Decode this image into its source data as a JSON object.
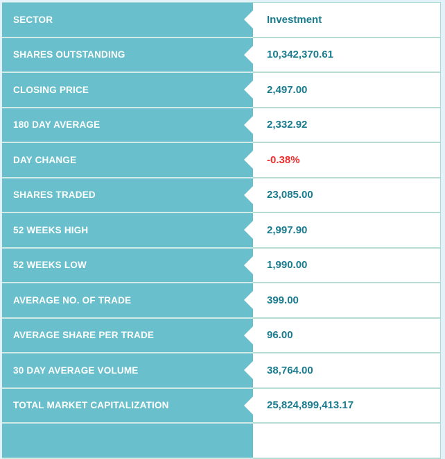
{
  "table": {
    "rows": [
      {
        "label": "SECTOR",
        "value": "Investment"
      },
      {
        "label": "SHARES OUTSTANDING",
        "value": "10,342,370.61"
      },
      {
        "label": "CLOSING PRICE",
        "value": "2,497.00"
      },
      {
        "label": "180 DAY AVERAGE",
        "value": "2,332.92"
      },
      {
        "label": "DAY CHANGE",
        "value": "-0.38%",
        "value_color": "#ee2e2e"
      },
      {
        "label": "SHARES TRADED",
        "value": "23,085.00"
      },
      {
        "label": "52 WEEKS HIGH",
        "value": "2,997.90"
      },
      {
        "label": "52 WEEKS LOW",
        "value": "1,990.00"
      },
      {
        "label": "AVERAGE NO. OF TRADE",
        "value": "399.00"
      },
      {
        "label": "AVERAGE SHARE PER TRADE",
        "value": "96.00"
      },
      {
        "label": "30 DAY AVERAGE VOLUME",
        "value": "38,764.00"
      },
      {
        "label": "TOTAL MARKET CAPITALIZATION",
        "value": "25,824,899,413.17"
      },
      {
        "label": "",
        "value": "",
        "sliver": true
      }
    ]
  },
  "colors": {
    "label_cell_background": "#69bfcb",
    "label_text": "#ffffff",
    "value_text": "#1a7b8f",
    "negative_value_text": "#ee2e2e",
    "frame_background": "#e3f1f8",
    "table_border": "#abdcd3",
    "label_row_separator": "#d2ebe7",
    "value_row_separator": "#b7dcd4"
  }
}
